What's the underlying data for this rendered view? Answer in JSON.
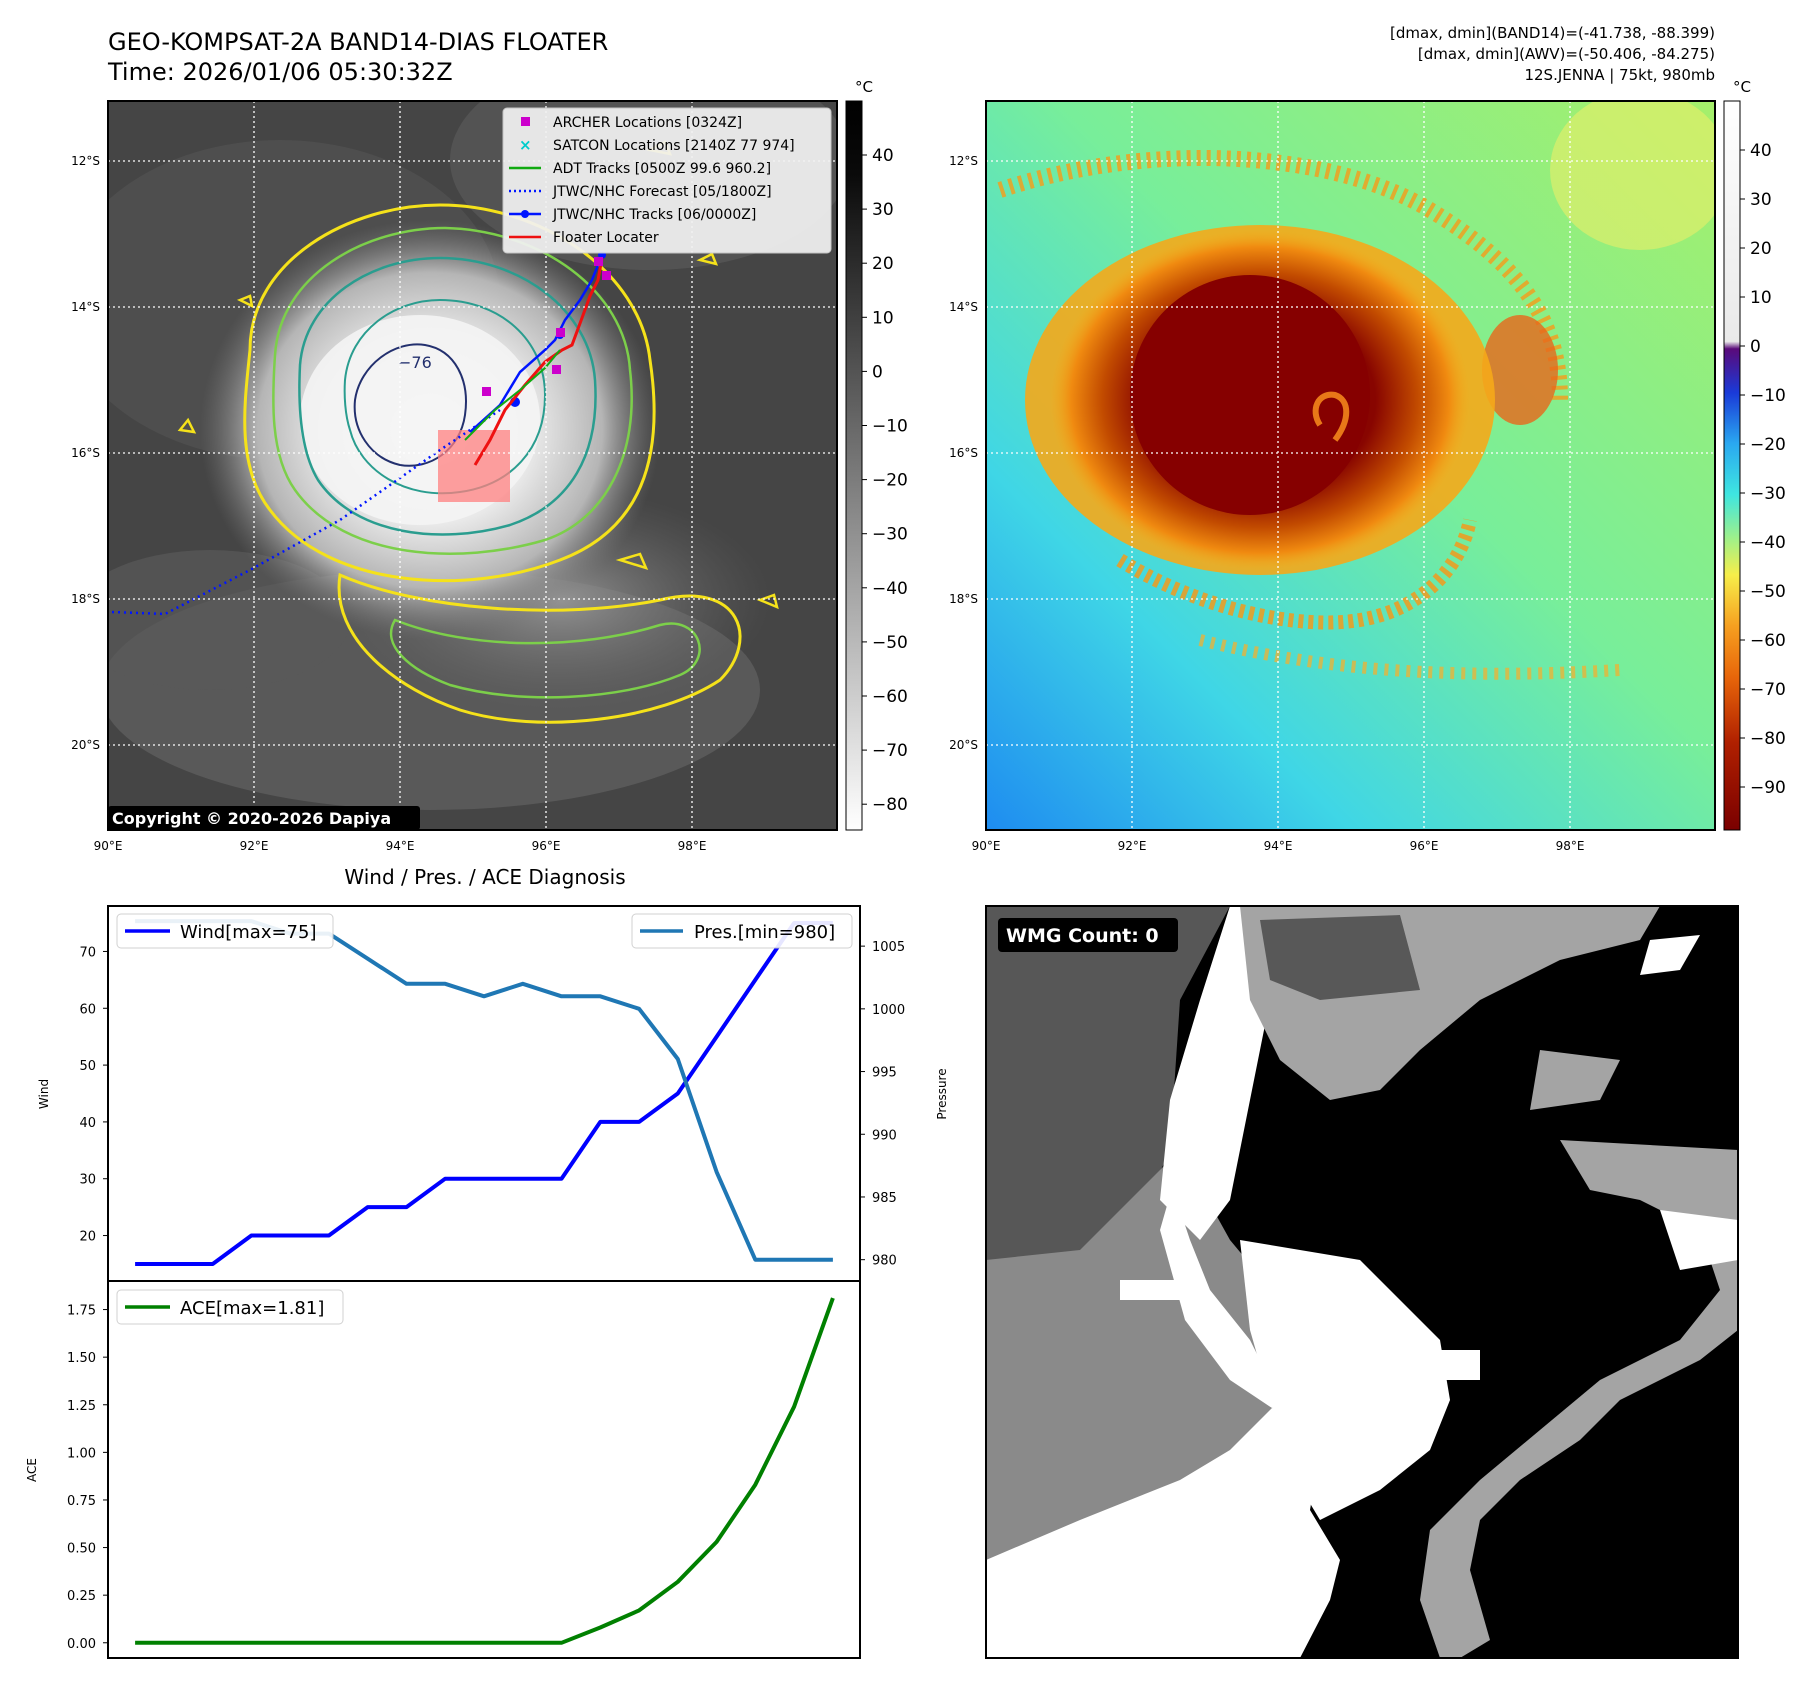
{
  "header": {
    "title_line1": "GEO-KOMPSAT-2A BAND14-DIAS FLOATER",
    "title_line2": "Time: 2026/01/06 05:30:32Z",
    "right_line1": "[dmax, dmin](BAND14)=(-41.738, -88.399)",
    "right_line2": "[dmax, dmin](AWV)=(-50.406, -84.275)",
    "right_line3": "12S.JENNA | 75kt, 980mb"
  },
  "map": {
    "lon_labels": [
      "90°E",
      "92°E",
      "94°E",
      "96°E",
      "98°E"
    ],
    "lat_labels": [
      "12°S",
      "14°S",
      "16°S",
      "18°S",
      "20°S"
    ],
    "contour_label": "−76",
    "copyright": "Copyright © 2020-2026 Dapiya",
    "legend": [
      "ARCHER Locations [0324Z]",
      "SATCON Locations [2140Z 77 974]",
      "ADT Tracks [0500Z 99.6 960.2]",
      "JTWC/NHC Forecast [05/1800Z]",
      "JTWC/NHC Tracks [06/0000Z]",
      "Floater Locater"
    ],
    "colorbar_unit": "°C",
    "gray_ticks": [
      "40",
      "30",
      "20",
      "10",
      "0",
      "−10",
      "−20",
      "−30",
      "−40",
      "−50",
      "−60",
      "−70",
      "−80"
    ],
    "color_ticks": [
      "40",
      "30",
      "20",
      "10",
      "0",
      "−10",
      "−20",
      "−30",
      "−40",
      "−50",
      "−60",
      "−70",
      "−80",
      "−90"
    ],
    "colors": {
      "contour_yellow": "#f5e21a",
      "contour_green": "#7ccf4a",
      "contour_teal": "#2a9d8f",
      "contour_navy": "#23306e",
      "track_blue": "#0015ff",
      "track_red": "#ee1111",
      "track_green": "#11aa11",
      "archer_magenta": "#cc00cc",
      "satcon_cyan": "#00cccc"
    }
  },
  "diagnosis": {
    "title": "Wind / Pres. / ACE Diagnosis",
    "wmg_label": "WMG Count: 0"
  },
  "chart_data": [
    {
      "type": "line",
      "title": "Wind / Pres. / ACE Diagnosis",
      "xlabel": "",
      "ylabel": "Wind",
      "ylabel_right": "Pressure",
      "ylim": [
        12,
        78
      ],
      "ylim_right": [
        978.3,
        1008.2
      ],
      "yticks": [
        20,
        30,
        40,
        50,
        60,
        70
      ],
      "yticks_right": [
        980,
        985,
        990,
        995,
        1000,
        1005
      ],
      "series": [
        {
          "name": "Wind[max=75]",
          "axis": "left",
          "color": "#0000ff",
          "x": [
            0,
            2,
            3,
            5,
            6,
            7,
            8,
            9,
            10,
            11,
            12,
            13,
            14,
            15,
            16,
            17,
            18
          ],
          "values": [
            15,
            15,
            20,
            20,
            25,
            25,
            30,
            30,
            30,
            30,
            40,
            40,
            45,
            55,
            65,
            75,
            75
          ]
        },
        {
          "name": "Pres.[min=980]",
          "axis": "right",
          "color": "#1f77b4",
          "x": [
            0,
            1,
            2,
            3,
            4,
            5,
            6,
            7,
            8,
            9,
            10,
            11,
            12,
            13,
            14,
            15,
            16,
            17,
            18
          ],
          "values": [
            1007,
            1007,
            1007,
            1007,
            1006,
            1006,
            1004,
            1002,
            1002,
            1001,
            1002,
            1001,
            1001,
            1000,
            996,
            987,
            980,
            980,
            980
          ]
        }
      ]
    },
    {
      "type": "line",
      "title": "",
      "xlabel": "",
      "ylabel": "ACE",
      "ylim": [
        -0.08,
        1.9
      ],
      "yticks": [
        0.0,
        0.25,
        0.5,
        0.75,
        1.0,
        1.25,
        1.5,
        1.75
      ],
      "series": [
        {
          "name": "ACE[max=1.81]",
          "color": "#008000",
          "x": [
            0,
            1,
            2,
            3,
            4,
            5,
            6,
            7,
            8,
            9,
            10,
            11,
            12,
            13,
            14,
            15,
            16,
            17,
            18
          ],
          "values": [
            0,
            0,
            0,
            0,
            0,
            0,
            0,
            0,
            0,
            0,
            0,
            0,
            0.08,
            0.17,
            0.32,
            0.53,
            0.83,
            1.24,
            1.81
          ]
        }
      ]
    }
  ]
}
